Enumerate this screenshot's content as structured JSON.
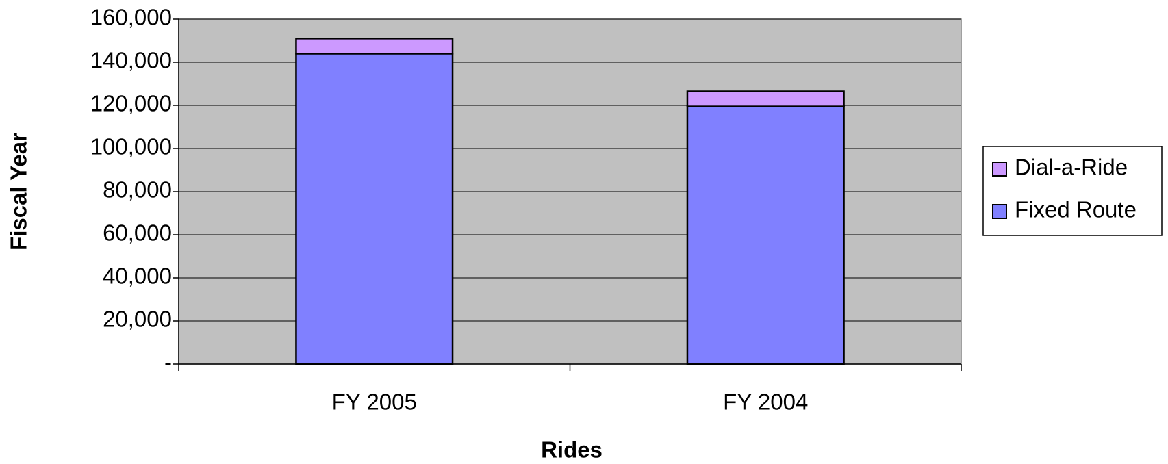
{
  "chart_data": {
    "type": "stacked_bar",
    "x_label": "Rides",
    "y_label": "Fiscal Year",
    "categories": [
      "FY 2005",
      "FY 2004"
    ],
    "series": [
      {
        "name": "Fixed Route",
        "color": "#8080ff",
        "values": [
          144000,
          119500
        ]
      },
      {
        "name": "Dial-a-Ride",
        "color": "#cc99ff",
        "values": [
          7000,
          7000
        ]
      }
    ],
    "ylim": [
      0,
      160000
    ],
    "yticks": [
      {
        "value": 0,
        "label": "-"
      },
      {
        "value": 20000,
        "label": "20,000"
      },
      {
        "value": 40000,
        "label": "40,000"
      },
      {
        "value": 60000,
        "label": "60,000"
      },
      {
        "value": 80000,
        "label": "80,000"
      },
      {
        "value": 100000,
        "label": "100,000"
      },
      {
        "value": 120000,
        "label": "120,000"
      },
      {
        "value": 140000,
        "label": "140,000"
      },
      {
        "value": 160000,
        "label": "160,000"
      }
    ],
    "grid": true,
    "plot_background": "#c0c0c0",
    "legend": "right"
  }
}
